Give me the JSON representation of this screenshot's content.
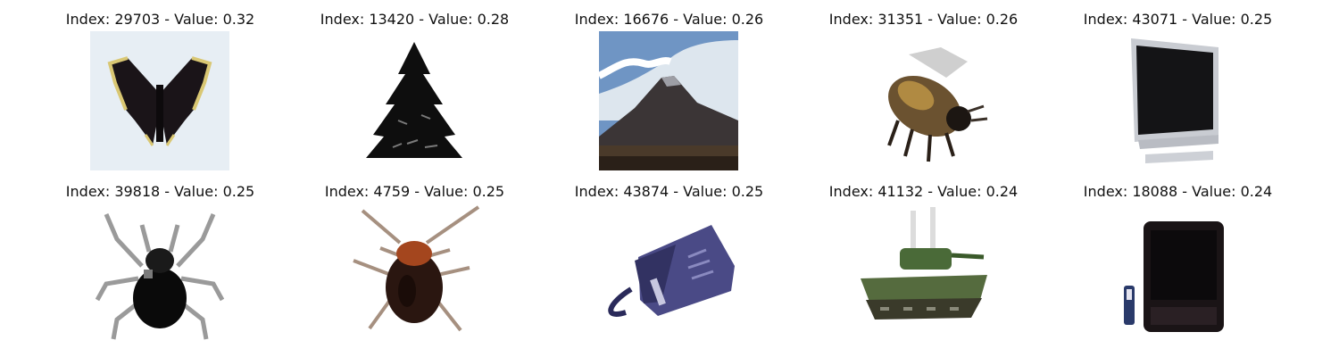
{
  "grid": {
    "cells": [
      {
        "title": "Index: 29703 - Value: 0.32",
        "subject": "butterfly"
      },
      {
        "title": "Index: 13420 - Value: 0.28",
        "subject": "pine-tree"
      },
      {
        "title": "Index: 16676 - Value: 0.26",
        "subject": "mountain"
      },
      {
        "title": "Index: 31351 - Value: 0.26",
        "subject": "bee"
      },
      {
        "title": "Index: 43071 - Value: 0.25",
        "subject": "television"
      },
      {
        "title": "Index: 39818 - Value: 0.25",
        "subject": "spider"
      },
      {
        "title": "Index: 4759 - Value: 0.25",
        "subject": "cockroach"
      },
      {
        "title": "Index: 43874 - Value: 0.25",
        "subject": "telephone"
      },
      {
        "title": "Index: 41132 - Value: 0.24",
        "subject": "tank"
      },
      {
        "title": "Index: 18088 - Value: 0.24",
        "subject": "television"
      }
    ]
  }
}
